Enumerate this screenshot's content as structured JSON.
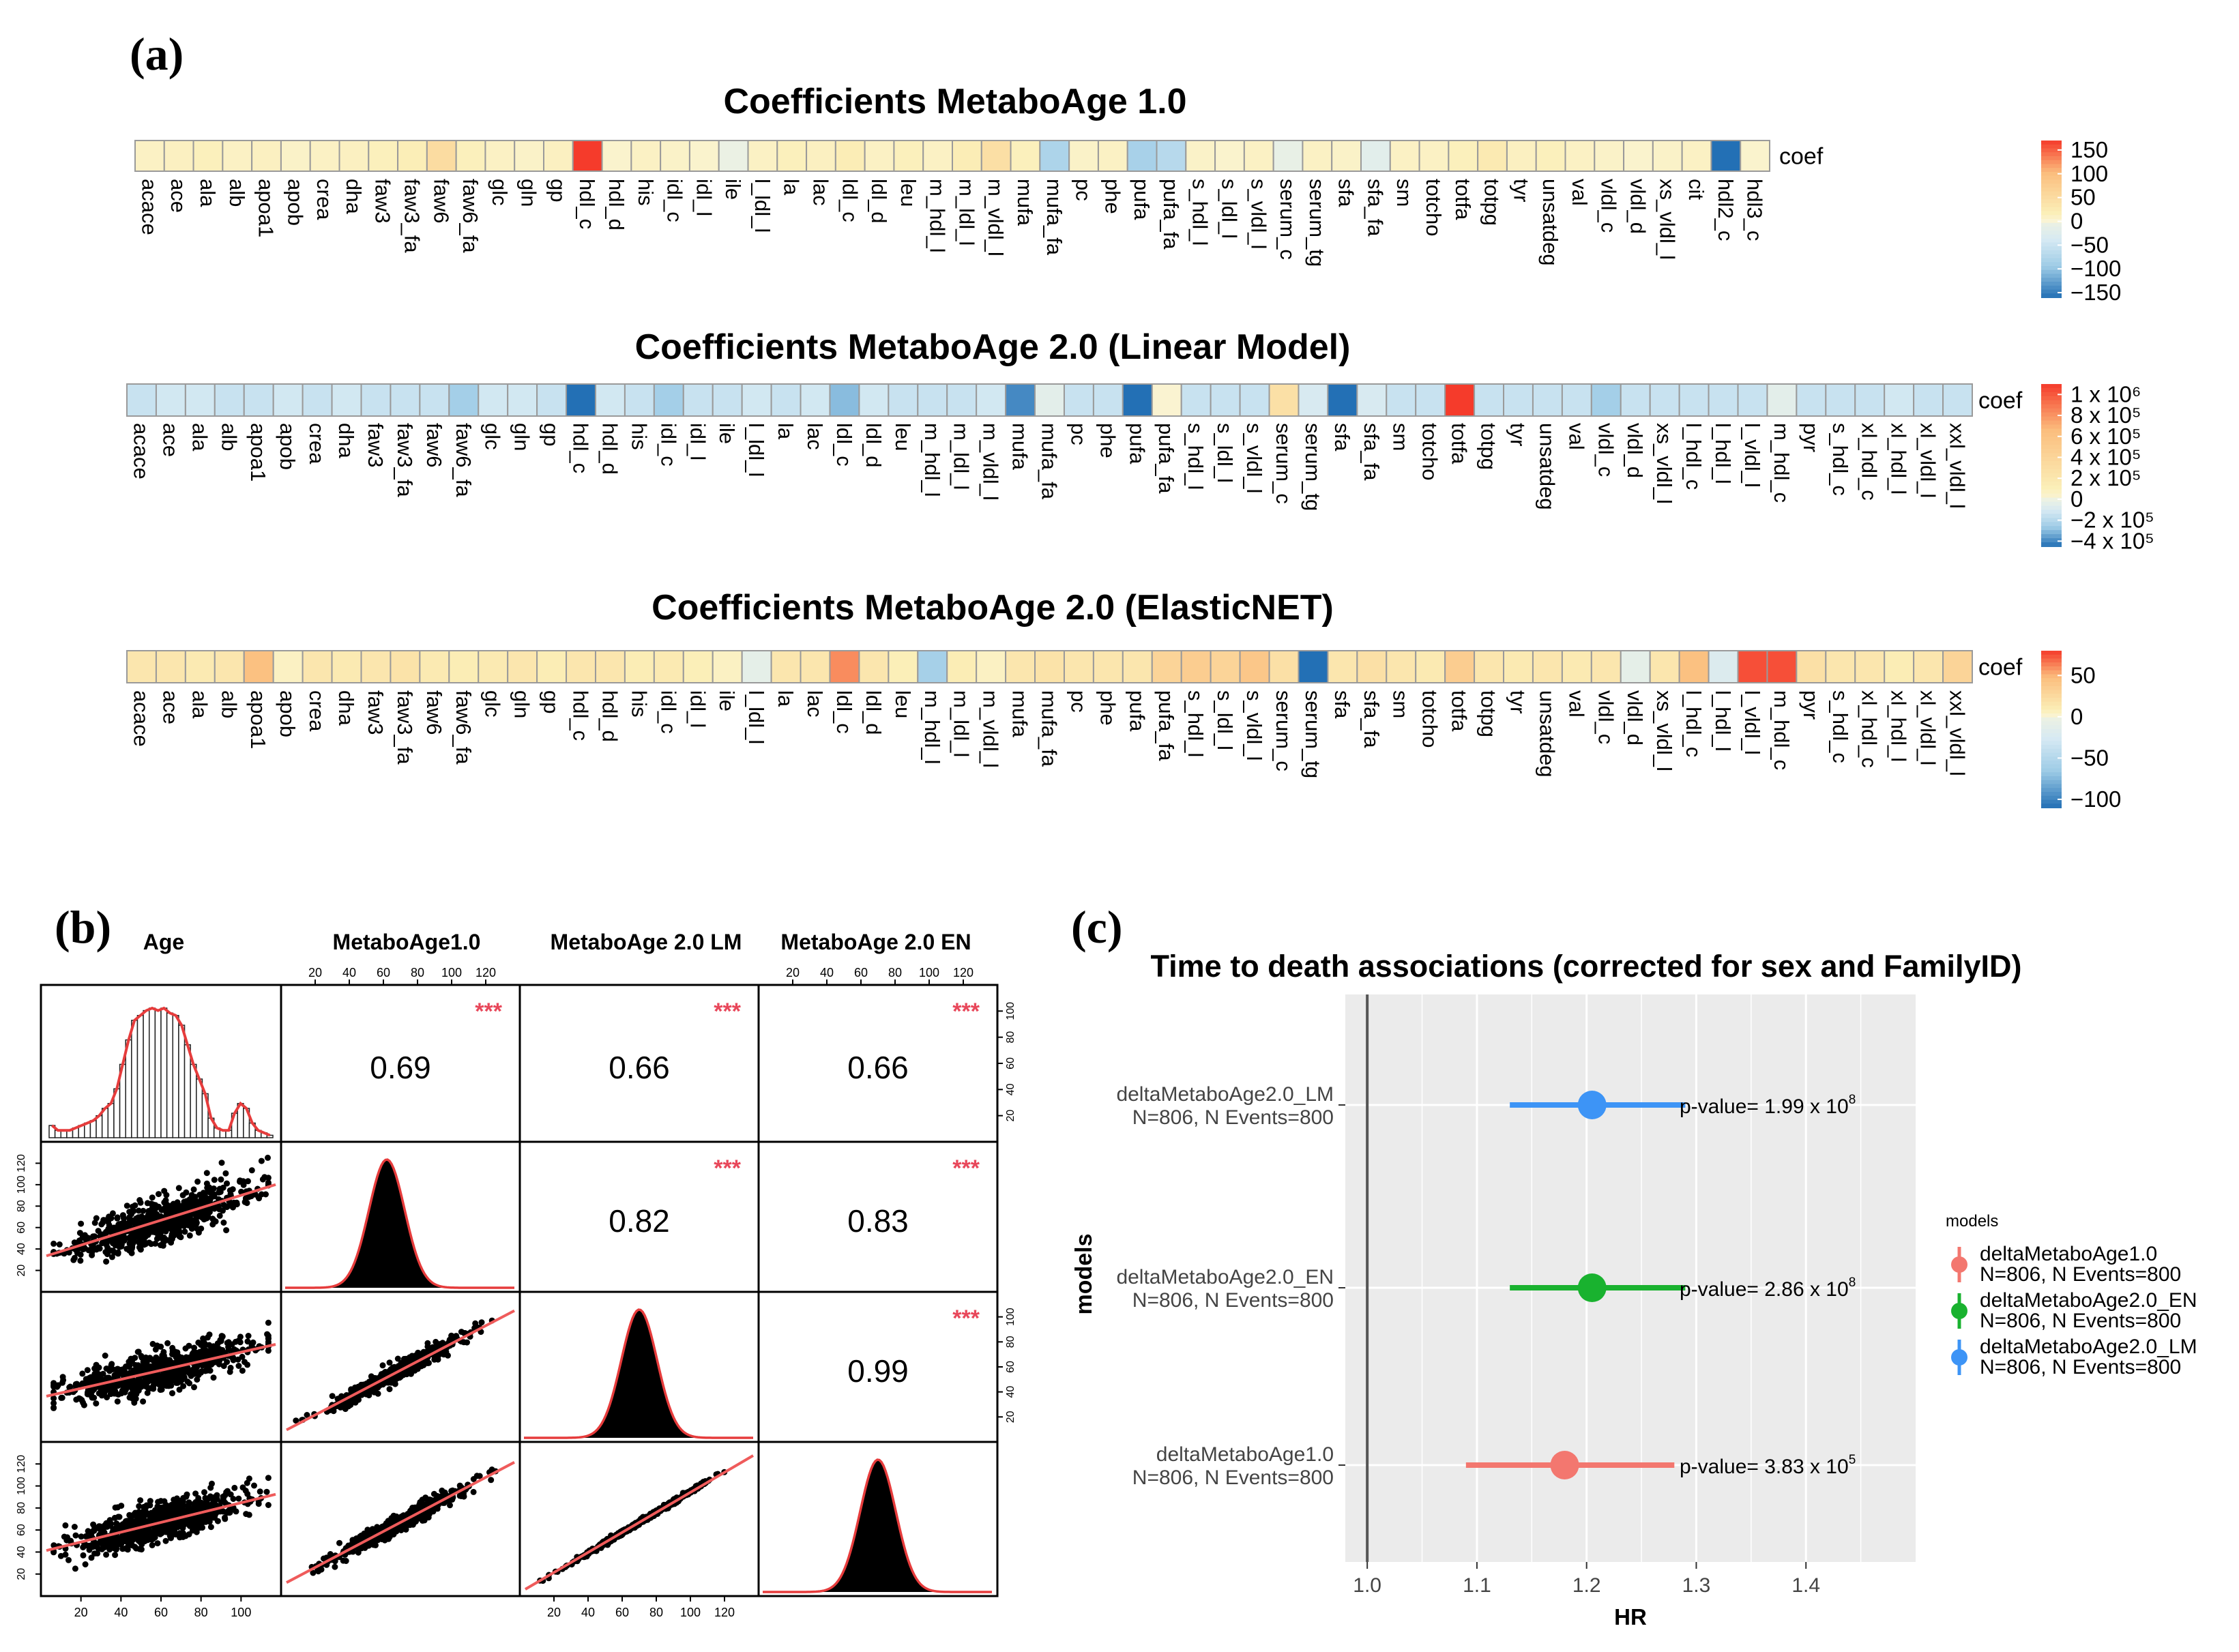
{
  "panel_labels": {
    "a": "(a)",
    "b": "(b)",
    "c": "(c)"
  },
  "chart_data": [
    {
      "type": "heatmap",
      "id": "hm1",
      "title": "Coefficients MetaboAge 1.0",
      "row_label": "coef",
      "columns": [
        "acace",
        "ace",
        "ala",
        "alb",
        "apoa1",
        "apob",
        "crea",
        "dha",
        "faw3",
        "faw3_fa",
        "faw6",
        "faw6_fa",
        "glc",
        "gln",
        "gp",
        "hdl_c",
        "hdl_d",
        "his",
        "idl_c",
        "idl_l",
        "ile",
        "l_ldl_l",
        "la",
        "lac",
        "ldl_c",
        "ldl_d",
        "leu",
        "m_hdl_l",
        "m_ldl_l",
        "m_vldl_l",
        "mufa",
        "mufa_fa",
        "pc",
        "phe",
        "pufa",
        "pufa_fa",
        "s_hdl_l",
        "s_ldl_l",
        "s_vldl_l",
        "serum_c",
        "serum_tg",
        "sfa",
        "sfa_fa",
        "sm",
        "totcho",
        "totfa",
        "totpg",
        "tyr",
        "unsatdeg",
        "val",
        "vldl_c",
        "vldl_d",
        "xs_vldl_l",
        "cit",
        "hdl2_c",
        "hdl3_c"
      ],
      "values": [
        10,
        12,
        15,
        10,
        12,
        8,
        10,
        12,
        15,
        18,
        50,
        15,
        10,
        8,
        12,
        170,
        5,
        10,
        8,
        5,
        -5,
        10,
        15,
        12,
        20,
        10,
        15,
        10,
        20,
        45,
        15,
        -80,
        8,
        10,
        -85,
        -70,
        8,
        5,
        10,
        -10,
        10,
        8,
        -20,
        10,
        10,
        15,
        25,
        12,
        15,
        10,
        8,
        5,
        8,
        10,
        -160,
        5
      ],
      "range": [
        -160,
        170
      ],
      "legend_ticks": [
        "150",
        "100",
        "50",
        "0",
        "−50",
        "−100",
        "−150"
      ],
      "legend_values": [
        150,
        100,
        50,
        0,
        -50,
        -100,
        -150
      ]
    },
    {
      "type": "heatmap",
      "id": "hm2",
      "title": "Coefficients MetaboAge 2.0 (Linear Model)",
      "row_label": "coef",
      "columns": [
        "acace",
        "ace",
        "ala",
        "alb",
        "apoa1",
        "apob",
        "crea",
        "dha",
        "faw3",
        "faw3_fa",
        "faw6",
        "faw6_fa",
        "glc",
        "gln",
        "gp",
        "hdl_c",
        "hdl_d",
        "his",
        "idl_c",
        "idl_l",
        "ile",
        "l_ldl_l",
        "la",
        "lac",
        "ldl_c",
        "ldl_d",
        "leu",
        "m_hdl_l",
        "m_ldl_l",
        "m_vldl_l",
        "mufa",
        "mufa_fa",
        "pc",
        "phe",
        "pufa",
        "pufa_fa",
        "s_hdl_l",
        "s_ldl_l",
        "s_vldl_l",
        "serum_c",
        "serum_tg",
        "sfa",
        "sfa_fa",
        "sm",
        "totcho",
        "totfa",
        "totpg",
        "tyr",
        "unsatdeg",
        "val",
        "vldl_c",
        "vldl_d",
        "xs_vldl_l",
        "l_hdl_c",
        "l_hdl_l",
        "l_vldl_l",
        "m_hdl_c",
        "pyr",
        "s_hdl_c",
        "xl_hdl_c",
        "xl_hdl_l",
        "xl_vldl_l",
        "xxl_vldl_l"
      ],
      "values": [
        -150000,
        -120000,
        -120000,
        -150000,
        -150000,
        -120000,
        -150000,
        -120000,
        -150000,
        -150000,
        -150000,
        -250000,
        -120000,
        -120000,
        -150000,
        -450000,
        -120000,
        -150000,
        -250000,
        -150000,
        -150000,
        -120000,
        -150000,
        -120000,
        -300000,
        -120000,
        -150000,
        -150000,
        -150000,
        -120000,
        -400000,
        -50000,
        -150000,
        -150000,
        -450000,
        20000,
        -150000,
        -150000,
        -150000,
        280000,
        -100000,
        -450000,
        -100000,
        -150000,
        -150000,
        1100000,
        -150000,
        -150000,
        -150000,
        -150000,
        -250000,
        -150000,
        -150000,
        -150000,
        -150000,
        -150000,
        -50000,
        -150000,
        -150000,
        -150000,
        -120000,
        -150000,
        -150000
      ],
      "range": [
        -450000,
        1100000
      ],
      "legend_ticks": [
        "1 x 10⁶",
        "8 x 10⁵",
        "6 x 10⁵",
        "4 x 10⁵",
        "2 x 10⁵",
        "0",
        "−2 x 10⁵",
        "−4 x 10⁵"
      ],
      "legend_values": [
        1000000,
        800000,
        600000,
        400000,
        200000,
        0,
        -200000,
        -400000
      ]
    },
    {
      "type": "heatmap",
      "id": "hm3",
      "title": "Coefficients MetaboAge 2.0 (ElasticNET)",
      "row_label": "coef",
      "columns": [
        "acace",
        "ace",
        "ala",
        "alb",
        "apoa1",
        "apob",
        "crea",
        "dha",
        "faw3",
        "faw3_fa",
        "faw6",
        "faw6_fa",
        "glc",
        "gln",
        "gp",
        "hdl_c",
        "hdl_d",
        "his",
        "idl_c",
        "idl_l",
        "ile",
        "l_ldl_l",
        "la",
        "lac",
        "ldl_c",
        "ldl_d",
        "leu",
        "m_hdl_l",
        "m_ldl_l",
        "m_vldl_l",
        "mufa",
        "mufa_fa",
        "pc",
        "phe",
        "pufa",
        "pufa_fa",
        "s_hdl_l",
        "s_ldl_l",
        "s_vldl_l",
        "serum_c",
        "serum_tg",
        "sfa",
        "sfa_fa",
        "sm",
        "totcho",
        "totfa",
        "totpg",
        "tyr",
        "unsatdeg",
        "val",
        "vldl_c",
        "vldl_d",
        "xs_vldl_l",
        "l_hdl_c",
        "l_hdl_l",
        "l_vldl_l",
        "m_hdl_c",
        "pyr",
        "s_hdl_c",
        "xl_hdl_c",
        "xl_hdl_l",
        "xl_vldl_l",
        "xxl_vldl_l"
      ],
      "values": [
        15,
        15,
        12,
        15,
        45,
        5,
        15,
        12,
        15,
        18,
        12,
        10,
        12,
        15,
        10,
        15,
        15,
        10,
        12,
        8,
        5,
        -10,
        15,
        15,
        60,
        15,
        8,
        -60,
        10,
        5,
        15,
        18,
        15,
        15,
        15,
        30,
        35,
        30,
        40,
        20,
        -110,
        15,
        20,
        15,
        12,
        35,
        15,
        12,
        15,
        12,
        15,
        -10,
        15,
        45,
        -20,
        75,
        75,
        20,
        15,
        15,
        10,
        15,
        30
      ],
      "range": [
        -110,
        80
      ],
      "legend_ticks": [
        "50",
        "0",
        "−50",
        "−100"
      ],
      "legend_values": [
        50,
        0,
        -50,
        -100
      ]
    },
    {
      "type": "scatter",
      "id": "pairs",
      "title": "",
      "variables": [
        "Age",
        "MetaboAge1.0",
        "MetaboAge 2.0 LM",
        "MetaboAge 2.0 EN"
      ],
      "correlations": [
        {
          "row": 1,
          "col": 2,
          "r": "0.69",
          "sig": "***"
        },
        {
          "row": 1,
          "col": 3,
          "r": "0.66",
          "sig": "***"
        },
        {
          "row": 1,
          "col": 4,
          "r": "0.66",
          "sig": "***"
        },
        {
          "row": 2,
          "col": 3,
          "r": "0.82",
          "sig": "***"
        },
        {
          "row": 2,
          "col": 4,
          "r": "0.83",
          "sig": "***"
        },
        {
          "row": 3,
          "col": 4,
          "r": "0.99",
          "sig": "***"
        }
      ],
      "top_axis_ticks": [
        "20",
        "40",
        "60",
        "80",
        "100",
        "120"
      ],
      "top_axis_ticks_en": [
        "20",
        "40",
        "60",
        "80",
        "100",
        "120"
      ],
      "right_axis_ticks": [
        "20",
        "40",
        "60",
        "80",
        "100"
      ],
      "left_axis_ticks": [
        "20",
        "40",
        "60",
        "80",
        "100",
        "120"
      ],
      "bottom_axis_ticks": [
        "20",
        "40",
        "60",
        "80",
        "100"
      ],
      "bottom_axis_ticks_lm": [
        "20",
        "40",
        "60",
        "80",
        "100",
        "120"
      ],
      "scatter_slopes": {
        "age_vs_mage1": 0.55,
        "age_vs_lm": 0.4,
        "age_vs_en": 0.42,
        "m1_vs_lm": 0.92,
        "m1_vs_en": 0.9,
        "lm_vs_en": 1.0
      },
      "age_histogram": [
        5,
        3,
        3,
        3,
        4,
        5,
        6,
        7,
        9,
        12,
        14,
        20,
        30,
        40,
        48,
        50,
        52,
        53,
        52,
        53,
        51,
        50,
        46,
        38,
        30,
        24,
        18,
        8,
        4,
        3,
        3,
        10,
        14,
        12,
        6,
        3,
        2,
        1
      ]
    },
    {
      "type": "scatter",
      "id": "forest",
      "title": "Time to death associations (corrected for sex and FamilyID)",
      "xlabel": "HR",
      "ylabel": "models",
      "xlim": [
        0.98,
        1.5
      ],
      "xticks": [
        "1.0",
        "1.1",
        "1.2",
        "1.3",
        "1.4"
      ],
      "xtick_values": [
        1.0,
        1.1,
        1.2,
        1.3,
        1.4
      ],
      "ref_line": 1.0,
      "rows": [
        {
          "model": "deltaMetaboAge2.0_LM",
          "n_label": "N=806, N Events=800",
          "hr": 1.205,
          "lo": 1.13,
          "hi": 1.29,
          "p_label": "p-value= 1.99 x 10",
          "p_exp": "8",
          "color": "#3d94f6"
        },
        {
          "model": "deltaMetaboAge2.0_EN",
          "n_label": "N=806, N Events=800",
          "hr": 1.205,
          "lo": 1.13,
          "hi": 1.29,
          "p_label": "p-value= 2.86 x 10",
          "p_exp": "8",
          "color": "#19b22f"
        },
        {
          "model": "deltaMetaboAge1.0",
          "n_label": "N=806, N Events=800",
          "hr": 1.18,
          "lo": 1.09,
          "hi": 1.28,
          "p_label": "p-value= 3.83 x 10",
          "p_exp": "5",
          "color": "#f3776f"
        }
      ],
      "legend_title": "models",
      "legend": [
        {
          "name": "deltaMetaboAge1.0",
          "n_label": "N=806, N Events=800",
          "color": "#f3776f"
        },
        {
          "name": "deltaMetaboAge2.0_EN",
          "n_label": "N=806, N Events=800",
          "color": "#19b22f"
        },
        {
          "name": "deltaMetaboAge2.0_LM",
          "n_label": "N=806, N Events=800",
          "color": "#3d94f6"
        }
      ]
    }
  ]
}
